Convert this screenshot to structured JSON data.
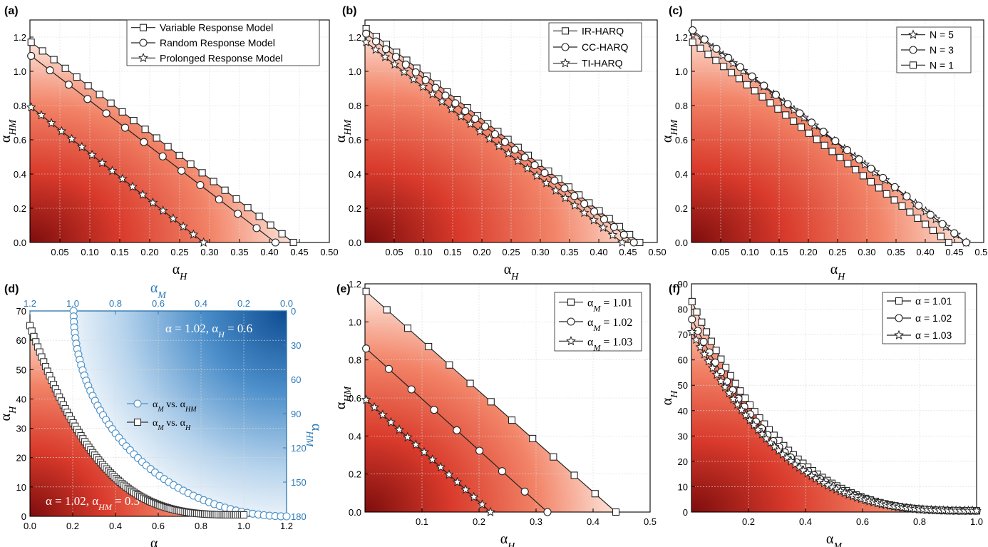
{
  "chart_data": [
    {
      "id": "a",
      "panel_label": "(a)",
      "type": "line",
      "xlabel": {
        "main": "α",
        "sub": "H"
      },
      "ylabel": {
        "main": "α",
        "sub": "HM"
      },
      "xlim": [
        0,
        0.5
      ],
      "ylim": [
        0,
        1.3
      ],
      "xticks": [
        0.05,
        0.1,
        0.15,
        0.2,
        0.25,
        0.3,
        0.35,
        0.4,
        0.45,
        0.5
      ],
      "xtick_labels": [
        "0.05",
        "0.10",
        "0.15",
        "0.20",
        "0.25",
        "0.30",
        "0.35",
        "0.40",
        "0.45",
        "0.50"
      ],
      "yticks": [
        0,
        0.2,
        0.4,
        0.6,
        0.8,
        1.0,
        1.2
      ],
      "ytick_labels": [
        "0.0",
        "0.2",
        "0.4",
        "0.6",
        "0.8",
        "1.0",
        "1.2"
      ],
      "gradient": "red_corner",
      "legend_position": "top-right",
      "series": [
        {
          "name": "Variable Response Model",
          "marker": "square",
          "curve": "linear",
          "x0": 0.002,
          "y0": 1.17,
          "x1": 0.44,
          "y1": 0.0,
          "n": 24
        },
        {
          "name": "Random Response Model",
          "marker": "circle",
          "curve": "linear",
          "x0": 0.002,
          "y0": 1.09,
          "x1": 0.41,
          "y1": 0.0,
          "n": 14
        },
        {
          "name": "Prolonged Response Model",
          "marker": "star",
          "curve": "linear",
          "x0": 0.002,
          "y0": 0.79,
          "x1": 0.29,
          "y1": 0.0,
          "n": 18
        }
      ]
    },
    {
      "id": "b",
      "panel_label": "(b)",
      "type": "line",
      "xlabel": {
        "main": "α",
        "sub": "H"
      },
      "ylabel": {
        "main": "α",
        "sub": "HM"
      },
      "xlim": [
        0,
        0.5
      ],
      "ylim": [
        0,
        1.3
      ],
      "xticks": [
        0.05,
        0.1,
        0.15,
        0.2,
        0.25,
        0.3,
        0.35,
        0.4,
        0.45,
        0.5
      ],
      "xtick_labels": [
        "0.05",
        "0.10",
        "0.15",
        "0.20",
        "0.25",
        "0.30",
        "0.35",
        "0.40",
        "0.45",
        "0.50"
      ],
      "yticks": [
        0,
        0.2,
        0.4,
        0.6,
        0.8,
        1.0,
        1.2
      ],
      "ytick_labels": [
        "0.0",
        "0.2",
        "0.4",
        "0.6",
        "0.8",
        "1.0",
        "1.2"
      ],
      "gradient": "red_corner",
      "legend_position": "top-right",
      "series": [
        {
          "name": "IR-HARQ",
          "marker": "square",
          "curve": "linear",
          "x0": 0.002,
          "y0": 1.25,
          "x1": 0.47,
          "y1": 0.0,
          "n": 28
        },
        {
          "name": "CC-HARQ",
          "marker": "circle",
          "curve": "linear",
          "x0": 0.002,
          "y0": 1.22,
          "x1": 0.46,
          "y1": 0.0,
          "n": 28
        },
        {
          "name": "TI-HARQ",
          "marker": "star",
          "curve": "linear",
          "x0": 0.002,
          "y0": 1.17,
          "x1": 0.44,
          "y1": 0.0,
          "n": 28
        }
      ]
    },
    {
      "id": "c",
      "panel_label": "(c)",
      "type": "line",
      "xlabel": {
        "main": "α",
        "sub": "H"
      },
      "ylabel": {
        "main": "α",
        "sub": "HM"
      },
      "xlim": [
        0,
        0.5
      ],
      "ylim": [
        0,
        1.3
      ],
      "xticks": [
        0.05,
        0.1,
        0.15,
        0.2,
        0.25,
        0.3,
        0.35,
        0.4,
        0.45,
        0.5
      ],
      "xtick_labels": [
        "0.05",
        "0.10",
        "0.15",
        "0.20",
        "0.25",
        "0.30",
        "0.35",
        "0.40",
        "0.45",
        "0.50"
      ],
      "yticks": [
        0,
        0.2,
        0.4,
        0.6,
        0.8,
        1.0,
        1.2
      ],
      "ytick_labels": [
        "0.0",
        "0.2",
        "0.4",
        "0.6",
        "0.8",
        "1.0",
        "1.2"
      ],
      "gradient": "red_corner",
      "legend_position": "top-right",
      "series": [
        {
          "name": "N = 5",
          "marker": "star",
          "curve": "linear",
          "x0": 0.002,
          "y0": 1.23,
          "x1": 0.47,
          "y1": 0.0,
          "n": 28
        },
        {
          "name": "N = 3",
          "marker": "circle",
          "curve": "linear",
          "x0": 0.002,
          "y0": 1.24,
          "x1": 0.47,
          "y1": 0.0,
          "n": 24
        },
        {
          "name": "N = 1",
          "marker": "square",
          "curve": "linear",
          "x0": 0.002,
          "y0": 1.17,
          "x1": 0.44,
          "y1": 0.0,
          "n": 34
        }
      ]
    },
    {
      "id": "d",
      "panel_label": "(d)",
      "type": "line",
      "xlabel": {
        "main": "α",
        "sub": "M"
      },
      "ylabel": {
        "main": "α",
        "sub": "H"
      },
      "top_xlabel": {
        "main": "α",
        "sub": "M"
      },
      "right_ylabel": {
        "main": "α",
        "sub": "HM"
      },
      "xlim": [
        0,
        1.2
      ],
      "ylim": [
        0,
        70
      ],
      "xticks": [
        0,
        0.2,
        0.4,
        0.6,
        0.8,
        1.0,
        1.2
      ],
      "xtick_labels": [
        "0.0",
        "0.2",
        "0.4",
        "0.6",
        "0.8",
        "1.0",
        "1.2"
      ],
      "yticks": [
        0,
        10,
        20,
        30,
        40,
        50,
        60,
        70
      ],
      "ytick_labels": [
        "0",
        "10",
        "20",
        "30",
        "40",
        "50",
        "60",
        "70"
      ],
      "top_xticks": [
        1.2,
        1.0,
        0.8,
        0.6,
        0.4,
        0.2,
        0.0
      ],
      "top_xtick_labels": [
        "1.2",
        "1.0",
        "0.8",
        "0.6",
        "0.4",
        "0.2",
        "0.0"
      ],
      "right_ylim": [
        0,
        180
      ],
      "right_yticks": [
        0,
        30,
        60,
        90,
        120,
        150,
        180
      ],
      "right_ytick_labels": [
        "0",
        "30",
        "60",
        "90",
        "120",
        "150",
        "180"
      ],
      "accent_color": "#2e7ab8",
      "gradient": "dual",
      "legend_position": "center",
      "series": [
        {
          "name": "α_M vs. α_HM",
          "legend_main": "α",
          "legend_sub": "M",
          "legend_mid": " vs. α",
          "legend_sub2": "HM",
          "marker": "circle",
          "color": "#4a90c8",
          "curve": "arc",
          "axis": "top-right",
          "n": 60
        },
        {
          "name": "α_M vs. α_H",
          "legend_main": "α",
          "legend_sub": "M",
          "legend_mid": " vs. α",
          "legend_sub2": "H",
          "marker": "square",
          "color": "#333333",
          "curve": "power",
          "x0": 0.0,
          "y0": 65,
          "x1": 1.0,
          "y1": 0.5,
          "k": 3.2,
          "n": 110
        }
      ],
      "annotations": [
        {
          "id": "ann_blue",
          "parts": [
            "α = 1.02, α",
            "H",
            " = 0.6"
          ]
        },
        {
          "id": "ann_red",
          "parts": [
            "α = 1.02, α",
            "HM",
            " = 0.3"
          ]
        }
      ]
    },
    {
      "id": "e",
      "panel_label": "(e)",
      "type": "line",
      "xlabel": {
        "main": "α",
        "sub": "H"
      },
      "ylabel": {
        "main": "α",
        "sub": "HM"
      },
      "xlim": [
        0,
        0.5
      ],
      "ylim": [
        0,
        1.2
      ],
      "xticks": [
        0.1,
        0.2,
        0.3,
        0.4,
        0.5
      ],
      "xtick_labels": [
        "0.1",
        "0.2",
        "0.3",
        "0.4",
        "0.5"
      ],
      "yticks": [
        0,
        0.2,
        0.4,
        0.6,
        0.8,
        1.0,
        1.2
      ],
      "ytick_labels": [
        "0.0",
        "0.2",
        "0.4",
        "0.6",
        "0.8",
        "1.0",
        "1.2"
      ],
      "gradient": "red_corner",
      "legend_position": "top-right",
      "series": [
        {
          "name": "α_M = 1.01",
          "legend_main": "α",
          "legend_sub": "M",
          "legend_mid": " = 1.01",
          "marker": "square",
          "curve": "linear",
          "x0": 0.002,
          "y0": 1.16,
          "x1": 0.44,
          "y1": 0.0,
          "n": 13
        },
        {
          "name": "α_M = 1.02",
          "legend_main": "α",
          "legend_sub": "M",
          "legend_mid": " = 1.02",
          "marker": "circle",
          "curve": "linear",
          "x0": 0.002,
          "y0": 0.86,
          "x1": 0.32,
          "y1": 0.0,
          "n": 9
        },
        {
          "name": "α_M = 1.03",
          "legend_main": "α",
          "legend_sub": "M",
          "legend_mid": " = 1.03",
          "marker": "star",
          "curve": "linear",
          "x0": 0.002,
          "y0": 0.59,
          "x1": 0.22,
          "y1": 0.0,
          "n": 16
        }
      ]
    },
    {
      "id": "f",
      "panel_label": "(f)",
      "type": "line",
      "xlabel": {
        "main": "α",
        "sub": "M"
      },
      "ylabel": {
        "main": "α",
        "sub": "H"
      },
      "xlim": [
        0,
        1.0
      ],
      "ylim": [
        0,
        90
      ],
      "xticks": [
        0.2,
        0.4,
        0.6,
        0.8,
        1.0
      ],
      "xtick_labels": [
        "0.2",
        "0.4",
        "0.6",
        "0.8",
        "1.0"
      ],
      "yticks": [
        0,
        10,
        20,
        30,
        40,
        50,
        60,
        70,
        80,
        90
      ],
      "ytick_labels": [
        "0",
        "10",
        "20",
        "30",
        "40",
        "50",
        "60",
        "70",
        "80",
        "90"
      ],
      "gradient": "red_corner",
      "legend_position": "top-right",
      "series": [
        {
          "name": "α = 1.01",
          "marker": "square",
          "curve": "power",
          "x0": 0.002,
          "y0": 83,
          "x1": 1.0,
          "y1": 0.5,
          "k": 3.0,
          "n": 60
        },
        {
          "name": "α = 1.02",
          "marker": "circle",
          "curve": "power",
          "x0": 0.002,
          "y0": 76,
          "x1": 1.0,
          "y1": 0.5,
          "k": 3.0,
          "n": 50
        },
        {
          "name": "α = 1.03",
          "marker": "star",
          "curve": "power",
          "x0": 0.002,
          "y0": 71,
          "x1": 1.0,
          "y1": 0.5,
          "k": 3.0,
          "n": 70
        }
      ]
    }
  ]
}
